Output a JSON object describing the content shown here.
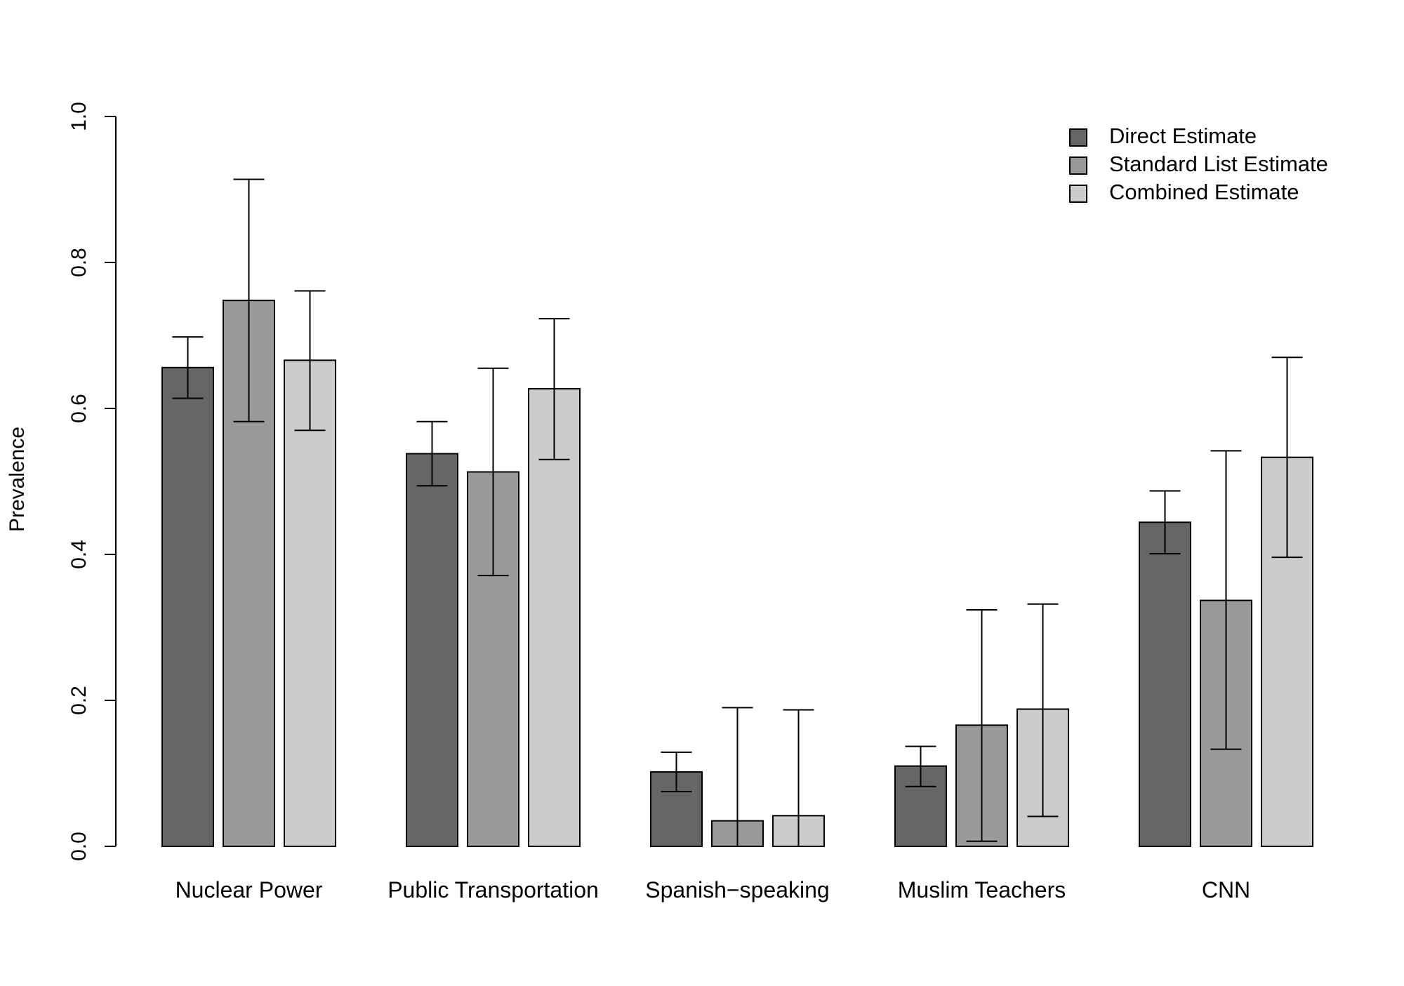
{
  "chart_data": {
    "type": "bar",
    "title": "",
    "xlabel": "",
    "ylabel": "Prevalence",
    "ylim": [
      0,
      1
    ],
    "yticks": [
      "0.0",
      "0.2",
      "0.4",
      "0.6",
      "0.8",
      "1.0"
    ],
    "categories": [
      "Nuclear Power",
      "Public Transportation",
      "Spanish−speaking",
      "Muslim Teachers",
      "CNN"
    ],
    "series": [
      {
        "name": "Direct Estimate",
        "color": "#666666",
        "values": [
          0.656,
          0.538,
          0.102,
          0.11,
          0.444
        ],
        "lower": [
          0.614,
          0.494,
          0.075,
          0.082,
          0.401
        ],
        "upper": [
          0.698,
          0.582,
          0.129,
          0.137,
          0.487
        ]
      },
      {
        "name": "Standard List Estimate",
        "color": "#999999",
        "values": [
          0.748,
          0.513,
          0.035,
          0.166,
          0.337
        ],
        "lower": [
          0.582,
          0.371,
          0.0,
          0.007,
          0.133
        ],
        "upper": [
          0.914,
          0.655,
          0.19,
          0.324,
          0.542
        ]
      },
      {
        "name": "Combined Estimate",
        "color": "#cccccc",
        "values": [
          0.666,
          0.627,
          0.042,
          0.188,
          0.533
        ],
        "lower": [
          0.57,
          0.53,
          0.0,
          0.041,
          0.396
        ],
        "upper": [
          0.761,
          0.723,
          0.187,
          0.332,
          0.67
        ]
      }
    ],
    "legend_position": "top-right",
    "grid": false
  }
}
